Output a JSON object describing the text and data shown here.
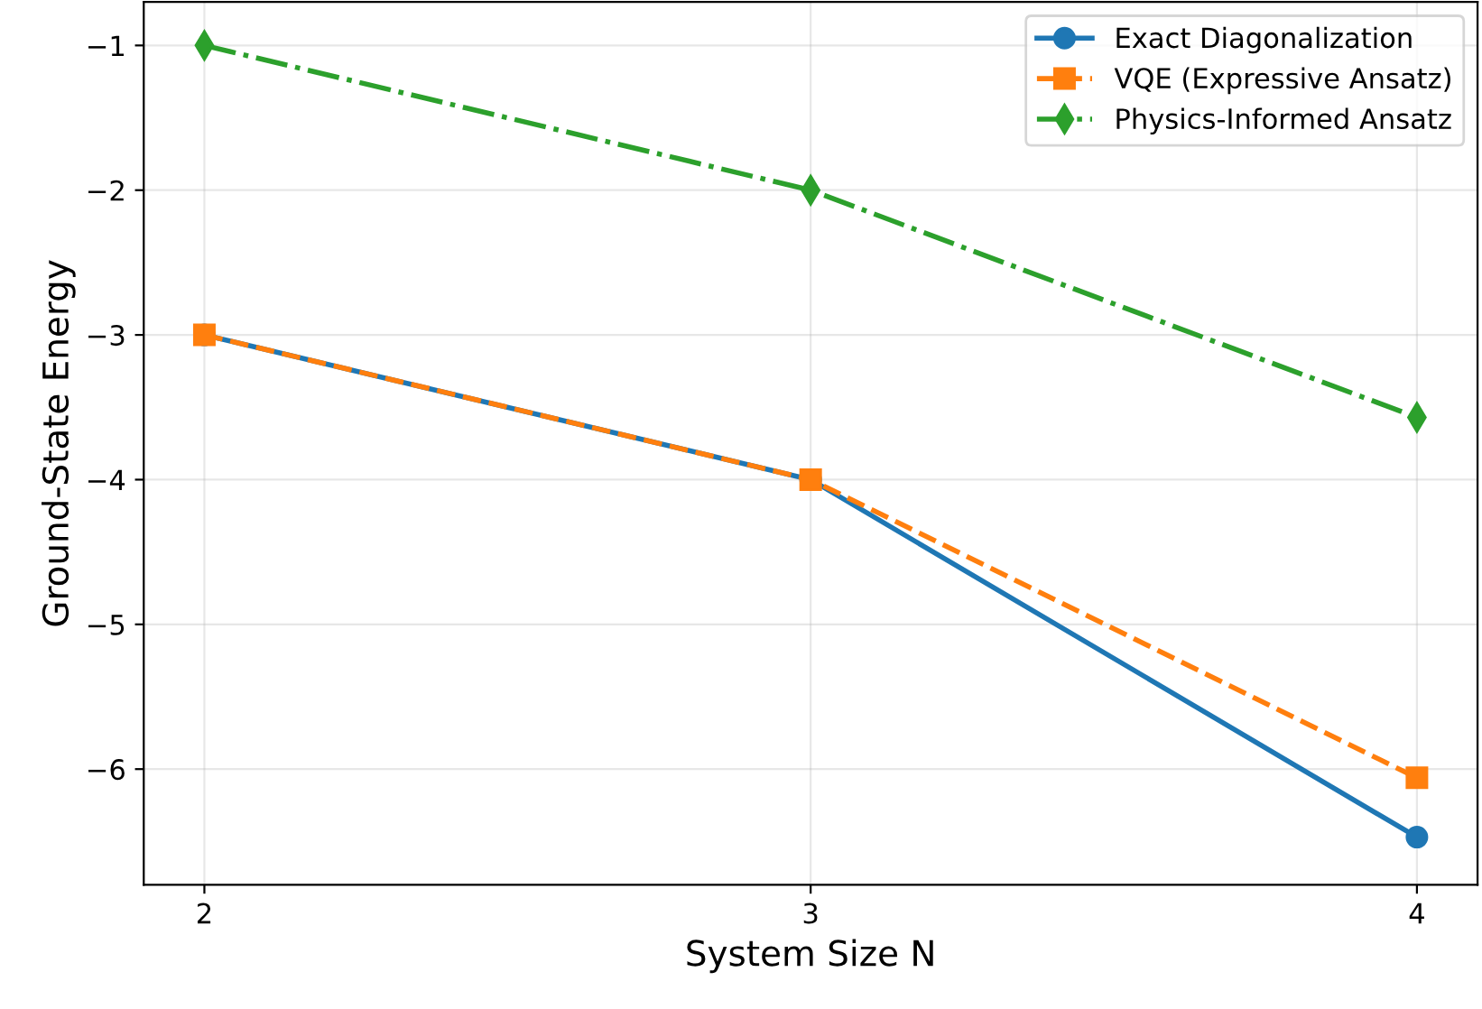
{
  "chart_data": {
    "type": "line",
    "xlabel": "System Size N",
    "ylabel": "Ground-State Energy",
    "x": [
      2,
      3,
      4
    ],
    "xlim": [
      1.9,
      4.1
    ],
    "xticks": [
      2,
      3,
      4
    ],
    "ylim": [
      -6.8,
      -0.7
    ],
    "yticks": [
      {
        "value": -6,
        "label": "−6"
      },
      {
        "value": -5,
        "label": "−5"
      },
      {
        "value": -4,
        "label": "−4"
      },
      {
        "value": -3,
        "label": "−3"
      },
      {
        "value": -2,
        "label": "−2"
      },
      {
        "value": -1,
        "label": "−1"
      }
    ],
    "grid": true,
    "legend": "top right",
    "series": [
      {
        "name": "Exact Diagonalization",
        "color": "#1f77b4",
        "values": [
          -3,
          -4,
          -6.47
        ],
        "marker": "circle",
        "line_style": "solid"
      },
      {
        "name": "VQE (Expressive Ansatz)",
        "color": "#ff7f0e",
        "values": [
          -3,
          -4,
          -6.06
        ],
        "marker": "square",
        "line_style": "dashed"
      },
      {
        "name": "Physics-Informed Ansatz",
        "color": "#2ca02c",
        "values": [
          -1,
          -2,
          -3.57
        ],
        "marker": "diamond",
        "line_style": "dashdot"
      }
    ]
  }
}
